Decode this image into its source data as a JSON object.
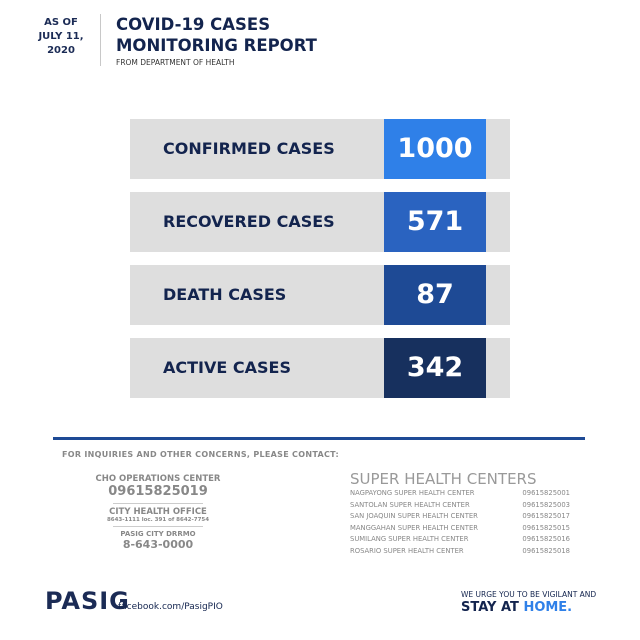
{
  "header": {
    "date_lines": [
      "AS OF",
      "JULY 11,",
      "2020"
    ],
    "title_lines": [
      "COVID-19 CASES",
      "MONITORING REPORT"
    ],
    "subtitle": "FROM DEPARTMENT OF HEALTH"
  },
  "stats": [
    {
      "label": "CONFIRMED CASES",
      "value": 1000
    },
    {
      "label": "RECOVERED CASES",
      "value": 571
    },
    {
      "label": "DEATH CASES",
      "value": 87
    },
    {
      "label": "ACTIVE CASES",
      "value": 342
    }
  ],
  "contact": {
    "heading": "FOR INQUIRIES AND OTHER CONCERNS, PLEASE CONTACT:",
    "cho_name": "CHO OPERATIONS CENTER",
    "cho_number": "09615825019",
    "cityhealth_name": "CITY HEALTH OFFICE",
    "cityhealth_number": "8643-1111 loc. 391 of 8642-7754",
    "drrmo_name": "PASIG CITY DRRMO",
    "drrmo_number": "8-643-0000"
  },
  "super_health_centers": {
    "title": "SUPER HEALTH CENTERS",
    "items": [
      {
        "name": "NAGPAYONG SUPER HEALTH CENTER",
        "number": "09615825001"
      },
      {
        "name": "SANTOLAN SUPER HEALTH CENTER",
        "number": "09615825003"
      },
      {
        "name": "SAN JOAQUIN SUPER HEALTH CENTER",
        "number": "09615825017"
      },
      {
        "name": "MANGGAHAN SUPER HEALTH CENTER",
        "number": "09615825015"
      },
      {
        "name": "SUMILANG SUPER HEALTH CENTER",
        "number": "09615825016"
      },
      {
        "name": "ROSARIO SUPER HEALTH CENTER",
        "number": "09615825018"
      }
    ]
  },
  "footer": {
    "logo": "PASIG",
    "facebook": "facebook.com/PasigPIO",
    "urge": "WE URGE YOU TO BE VIGILANT AND",
    "stay": "STAY AT",
    "home": "HOME."
  }
}
